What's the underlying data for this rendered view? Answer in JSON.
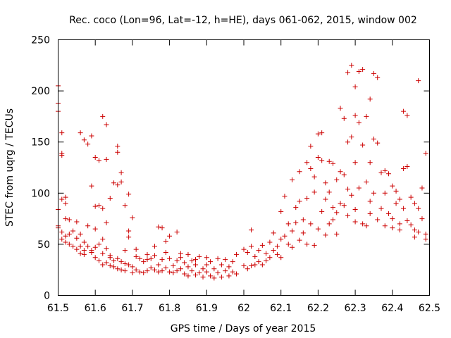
{
  "chart_data": {
    "type": "scatter",
    "title": "Rec. coco (Lon=96, Lat=-12, h=HE), days 061-062, 2015, window 002",
    "xlabel": "GPS time / Days of year 2015",
    "ylabel": "STEC from uqrg / TECUs",
    "xlim": [
      61.5,
      62.5
    ],
    "ylim": [
      0,
      250
    ],
    "x_ticks": [
      61.5,
      61.6,
      61.7,
      61.8,
      61.9,
      62,
      62.1,
      62.2,
      62.3,
      62.4,
      62.5
    ],
    "x_tick_labels": [
      "61.5",
      "61.6",
      "61.7",
      "61.8",
      "61.9",
      "62",
      "62.1",
      "62.2",
      "62.3",
      "62.4",
      "62.5"
    ],
    "y_ticks": [
      0,
      50,
      100,
      150,
      200,
      250
    ],
    "y_tick_labels": [
      "0",
      "50",
      "100",
      "150",
      "200",
      "250"
    ],
    "marker": "+",
    "color": "#cc0000",
    "points": [
      [
        61.5,
        205
      ],
      [
        61.5,
        188
      ],
      [
        61.5,
        180
      ],
      [
        61.51,
        159
      ],
      [
        61.51,
        139
      ],
      [
        61.51,
        137
      ],
      [
        61.51,
        94
      ],
      [
        61.52,
        96
      ],
      [
        61.52,
        90
      ],
      [
        61.52,
        75
      ],
      [
        61.53,
        74
      ],
      [
        61.5,
        84
      ],
      [
        61.5,
        68
      ],
      [
        61.5,
        66
      ],
      [
        61.51,
        62
      ],
      [
        61.51,
        55
      ],
      [
        61.52,
        58
      ],
      [
        61.52,
        52
      ],
      [
        61.53,
        60
      ],
      [
        61.53,
        50
      ],
      [
        61.54,
        63
      ],
      [
        61.54,
        48
      ],
      [
        61.55,
        56
      ],
      [
        61.55,
        45
      ],
      [
        61.56,
        60
      ],
      [
        61.56,
        41
      ],
      [
        61.57,
        52
      ],
      [
        61.57,
        40
      ],
      [
        61.58,
        68
      ],
      [
        61.58,
        48
      ],
      [
        61.59,
        107
      ],
      [
        61.59,
        44
      ],
      [
        61.6,
        65
      ],
      [
        61.6,
        87
      ],
      [
        61.6,
        37
      ],
      [
        61.61,
        88
      ],
      [
        61.61,
        50
      ],
      [
        61.61,
        34
      ],
      [
        61.62,
        85
      ],
      [
        61.62,
        41
      ],
      [
        61.62,
        30
      ],
      [
        61.63,
        71
      ],
      [
        61.63,
        46
      ],
      [
        61.63,
        32
      ],
      [
        61.64,
        95
      ],
      [
        61.64,
        39
      ],
      [
        61.64,
        29
      ],
      [
        61.65,
        110
      ],
      [
        61.65,
        34
      ],
      [
        61.65,
        28
      ],
      [
        61.66,
        108
      ],
      [
        61.66,
        26
      ],
      [
        61.67,
        111
      ],
      [
        61.67,
        33
      ],
      [
        61.67,
        25
      ],
      [
        61.68,
        88
      ],
      [
        61.68,
        31
      ],
      [
        61.68,
        24
      ],
      [
        61.69,
        99
      ],
      [
        61.69,
        30
      ],
      [
        61.7,
        76
      ],
      [
        61.7,
        28
      ],
      [
        61.7,
        22
      ],
      [
        61.56,
        159
      ],
      [
        61.57,
        152
      ],
      [
        61.58,
        148
      ],
      [
        61.59,
        156
      ],
      [
        61.6,
        135
      ],
      [
        61.61,
        132
      ],
      [
        61.62,
        175
      ],
      [
        61.63,
        167
      ],
      [
        61.63,
        133
      ],
      [
        61.66,
        146
      ],
      [
        61.66,
        140
      ],
      [
        61.67,
        120
      ],
      [
        61.55,
        72
      ],
      [
        61.56,
        48
      ],
      [
        61.57,
        44
      ],
      [
        61.59,
        42
      ],
      [
        61.6,
        47
      ],
      [
        61.62,
        55
      ],
      [
        61.64,
        37
      ],
      [
        61.66,
        36
      ],
      [
        61.68,
        44
      ],
      [
        61.69,
        57
      ],
      [
        61.69,
        63
      ],
      [
        61.71,
        45
      ],
      [
        61.71,
        38
      ],
      [
        61.71,
        25
      ],
      [
        61.72,
        36
      ],
      [
        61.72,
        23
      ],
      [
        61.73,
        33
      ],
      [
        61.73,
        22
      ],
      [
        61.74,
        40
      ],
      [
        61.74,
        35
      ],
      [
        61.74,
        24
      ],
      [
        61.75,
        36
      ],
      [
        61.75,
        27
      ],
      [
        61.76,
        39
      ],
      [
        61.76,
        25
      ],
      [
        61.77,
        67
      ],
      [
        61.77,
        30
      ],
      [
        61.77,
        23
      ],
      [
        61.78,
        66
      ],
      [
        61.78,
        35
      ],
      [
        61.78,
        24
      ],
      [
        61.79,
        53
      ],
      [
        61.79,
        27
      ],
      [
        61.8,
        58
      ],
      [
        61.8,
        36
      ],
      [
        61.8,
        23
      ],
      [
        61.81,
        29
      ],
      [
        61.81,
        22
      ],
      [
        61.82,
        34
      ],
      [
        61.82,
        24
      ],
      [
        61.83,
        41
      ],
      [
        61.83,
        26
      ],
      [
        61.84,
        32
      ],
      [
        61.84,
        21
      ],
      [
        61.85,
        40
      ],
      [
        61.85,
        28
      ],
      [
        61.85,
        19
      ],
      [
        61.86,
        34
      ],
      [
        61.86,
        24
      ],
      [
        61.87,
        30
      ],
      [
        61.87,
        20
      ],
      [
        61.88,
        38
      ],
      [
        61.88,
        22
      ],
      [
        61.89,
        26
      ],
      [
        61.89,
        18
      ],
      [
        61.9,
        37
      ],
      [
        61.9,
        23
      ],
      [
        61.91,
        33
      ],
      [
        61.91,
        19
      ],
      [
        61.92,
        26
      ],
      [
        61.92,
        17
      ],
      [
        61.93,
        36
      ],
      [
        61.93,
        22
      ],
      [
        61.94,
        30
      ],
      [
        61.94,
        18
      ],
      [
        61.95,
        35
      ],
      [
        61.95,
        24
      ],
      [
        61.96,
        28
      ],
      [
        61.96,
        19
      ],
      [
        61.97,
        33
      ],
      [
        61.97,
        23
      ],
      [
        61.98,
        40
      ],
      [
        61.98,
        21
      ],
      [
        61.82,
        62
      ],
      [
        61.76,
        48
      ],
      [
        61.79,
        42
      ],
      [
        61.83,
        37
      ],
      [
        61.87,
        35
      ],
      [
        61.9,
        30
      ],
      [
        62,
        45
      ],
      [
        62,
        29
      ],
      [
        62.01,
        42
      ],
      [
        62.01,
        26
      ],
      [
        62.02,
        64
      ],
      [
        62.02,
        48
      ],
      [
        62.02,
        29
      ],
      [
        62.03,
        38
      ],
      [
        62.03,
        30
      ],
      [
        62.04,
        44
      ],
      [
        62.04,
        33
      ],
      [
        62.05,
        49
      ],
      [
        62.05,
        30
      ],
      [
        62.06,
        41
      ],
      [
        62.06,
        34
      ],
      [
        62.07,
        52
      ],
      [
        62.07,
        37
      ],
      [
        62.08,
        61
      ],
      [
        62.08,
        44
      ],
      [
        62.09,
        48
      ],
      [
        62.09,
        40
      ],
      [
        62.1,
        82
      ],
      [
        62.1,
        55
      ],
      [
        62.1,
        37
      ],
      [
        62.11,
        97
      ],
      [
        62.11,
        58
      ],
      [
        62.12,
        70
      ],
      [
        62.12,
        50
      ],
      [
        62.13,
        113
      ],
      [
        62.13,
        63
      ],
      [
        62.13,
        47
      ],
      [
        62.14,
        86
      ],
      [
        62.14,
        71
      ],
      [
        62.15,
        121
      ],
      [
        62.15,
        92
      ],
      [
        62.15,
        54
      ],
      [
        62.16,
        74
      ],
      [
        62.16,
        61
      ],
      [
        62.17,
        130
      ],
      [
        62.17,
        95
      ],
      [
        62.17,
        50
      ],
      [
        62.18,
        146
      ],
      [
        62.18,
        124
      ],
      [
        62.18,
        70
      ],
      [
        62.19,
        116
      ],
      [
        62.19,
        101
      ],
      [
        62.19,
        49
      ],
      [
        62.2,
        158
      ],
      [
        62.2,
        135
      ],
      [
        62.2,
        65
      ],
      [
        62.21,
        159
      ],
      [
        62.21,
        132
      ],
      [
        62.21,
        82
      ],
      [
        62.22,
        110
      ],
      [
        62.22,
        94
      ],
      [
        62.22,
        59
      ],
      [
        62.23,
        131
      ],
      [
        62.23,
        101
      ],
      [
        62.23,
        70
      ],
      [
        62.24,
        129
      ],
      [
        62.24,
        86
      ],
      [
        62.25,
        113
      ],
      [
        62.25,
        81
      ],
      [
        62.26,
        183
      ],
      [
        62.26,
        121
      ],
      [
        62.26,
        90
      ],
      [
        62.27,
        173
      ],
      [
        62.27,
        118
      ],
      [
        62.27,
        88
      ],
      [
        62.28,
        218
      ],
      [
        62.28,
        150
      ],
      [
        62.28,
        104
      ],
      [
        62.29,
        225
      ],
      [
        62.29,
        155
      ],
      [
        62.29,
        98
      ],
      [
        62.3,
        204
      ],
      [
        62.3,
        176
      ],
      [
        62.3,
        130
      ],
      [
        62.3,
        84
      ],
      [
        62.31,
        219
      ],
      [
        62.31,
        169
      ],
      [
        62.31,
        105
      ],
      [
        62.32,
        221
      ],
      [
        62.32,
        147
      ],
      [
        62.32,
        70
      ],
      [
        62.33,
        175
      ],
      [
        62.33,
        111
      ],
      [
        62.33,
        68
      ],
      [
        62.34,
        192
      ],
      [
        62.34,
        130
      ],
      [
        62.34,
        92
      ],
      [
        62.35,
        217
      ],
      [
        62.35,
        153
      ],
      [
        62.35,
        100
      ],
      [
        62.36,
        213
      ],
      [
        62.36,
        149
      ],
      [
        62.36,
        74
      ],
      [
        62.37,
        120
      ],
      [
        62.37,
        85
      ],
      [
        62.38,
        122
      ],
      [
        62.38,
        100
      ],
      [
        62.39,
        119
      ],
      [
        62.39,
        80
      ],
      [
        62.4,
        107
      ],
      [
        62.4,
        66
      ],
      [
        62.41,
        102
      ],
      [
        62.41,
        90
      ],
      [
        62.42,
        94
      ],
      [
        62.42,
        64
      ],
      [
        62.43,
        180
      ],
      [
        62.43,
        124
      ],
      [
        62.43,
        85
      ],
      [
        62.44,
        176
      ],
      [
        62.44,
        126
      ],
      [
        62.44,
        73
      ],
      [
        62.45,
        96
      ],
      [
        62.45,
        69
      ],
      [
        62.46,
        90
      ],
      [
        62.46,
        64
      ],
      [
        62.47,
        210
      ],
      [
        62.47,
        85
      ],
      [
        62.47,
        62
      ],
      [
        62.48,
        105
      ],
      [
        62.48,
        75
      ],
      [
        62.49,
        139
      ],
      [
        62.49,
        60
      ],
      [
        62.49,
        55
      ],
      [
        62.24,
        74
      ],
      [
        62.25,
        60
      ],
      [
        62.28,
        78
      ],
      [
        62.3,
        72
      ],
      [
        62.34,
        80
      ],
      [
        62.38,
        68
      ],
      [
        62.4,
        75
      ],
      [
        62.42,
        70
      ],
      [
        62.46,
        57
      ]
    ]
  }
}
